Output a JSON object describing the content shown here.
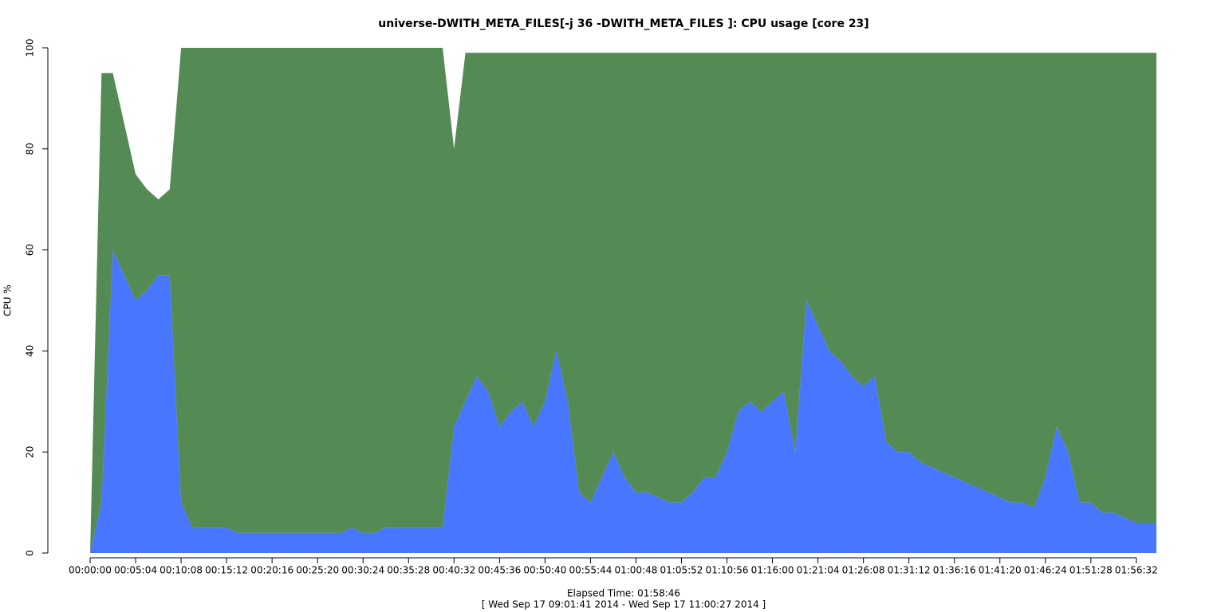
{
  "chart_data": {
    "type": "area",
    "title": "universe-DWITH_META_FILES[-j 36 -DWITH_META_FILES ]: CPU usage [core 23]",
    "xlabel": "Elapsed Time: 01:58:46",
    "subtitle": "[ Wed Sep 17 09:01:41 2014 - Wed Sep 17 11:00:27 2014 ]",
    "ylabel": "CPU %",
    "stacked": true,
    "x": [
      0,
      76,
      152,
      228,
      304,
      380,
      456,
      532,
      608,
      684,
      760,
      836,
      912,
      988,
      1064,
      1140,
      1216,
      1292,
      1368,
      1444,
      1520,
      1596,
      1672,
      1748,
      1824,
      1900,
      1976,
      2052,
      2128,
      2204,
      2280,
      2356,
      2432,
      2508,
      2584,
      2660,
      2736,
      2812,
      2888,
      2964,
      3040,
      3116,
      3192,
      3268,
      3344,
      3420,
      3496,
      3572,
      3648,
      3724,
      3800,
      3876,
      3952,
      4028,
      4104,
      4180,
      4256,
      4332,
      4408,
      4484,
      4560,
      4636,
      4712,
      4788,
      4864,
      4940,
      5016,
      5092,
      5168,
      5244,
      5320,
      5396,
      5472,
      5548,
      5624,
      5700,
      5776,
      5852,
      5928,
      6004,
      6080,
      6156,
      6232,
      6308,
      6384,
      6460,
      6536,
      6612,
      6688,
      6764,
      6840,
      6916,
      6992,
      7068,
      7126
    ],
    "series": [
      {
        "color": "#4876ff",
        "values": [
          0,
          10,
          60,
          55,
          50,
          52,
          55,
          55,
          10,
          5,
          5,
          5,
          5,
          4,
          4,
          4,
          4,
          4,
          4,
          4,
          4,
          4,
          4,
          5,
          4,
          4,
          5,
          5,
          5,
          5,
          5,
          5,
          25,
          30,
          35,
          32,
          25,
          28,
          30,
          25,
          30,
          40,
          30,
          12,
          10,
          15,
          20,
          15,
          12,
          12,
          11,
          10,
          10,
          12,
          15,
          15,
          20,
          28,
          30,
          28,
          30,
          32,
          20,
          50,
          45,
          40,
          38,
          35,
          33,
          35,
          22,
          20,
          20,
          18,
          17,
          16,
          15,
          14,
          13,
          12,
          11,
          10,
          10,
          9,
          15,
          25,
          20,
          10,
          10,
          8,
          8,
          7,
          6,
          6,
          6
        ]
      },
      {
        "color": "#548b54",
        "values": [
          0,
          85,
          35,
          30,
          25,
          20,
          15,
          17,
          90,
          95,
          95,
          95,
          95,
          96,
          96,
          96,
          96,
          96,
          96,
          96,
          96,
          96,
          96,
          95,
          96,
          96,
          95,
          95,
          95,
          95,
          95,
          95,
          55,
          69,
          64,
          67,
          74,
          71,
          69,
          74,
          69,
          59,
          69,
          87,
          89,
          84,
          79,
          84,
          87,
          87,
          88,
          89,
          89,
          87,
          84,
          84,
          79,
          71,
          69,
          71,
          69,
          67,
          79,
          49,
          54,
          59,
          61,
          64,
          66,
          64,
          77,
          79,
          79,
          81,
          82,
          83,
          84,
          85,
          86,
          87,
          88,
          89,
          89,
          90,
          84,
          74,
          79,
          89,
          89,
          91,
          91,
          92,
          93,
          93,
          93
        ]
      }
    ],
    "xlim": [
      0,
      7126
    ],
    "xticks": [
      {
        "value": 0,
        "label": "00:00:00"
      },
      {
        "value": 304,
        "label": "00:05:04"
      },
      {
        "value": 608,
        "label": "00:10:08"
      },
      {
        "value": 912,
        "label": "00:15:12"
      },
      {
        "value": 1216,
        "label": "00:20:16"
      },
      {
        "value": 1520,
        "label": "00:25:20"
      },
      {
        "value": 1824,
        "label": "00:30:24"
      },
      {
        "value": 2128,
        "label": "00:35:28"
      },
      {
        "value": 2432,
        "label": "00:40:32"
      },
      {
        "value": 2736,
        "label": "00:45:36"
      },
      {
        "value": 3040,
        "label": "00:50:40"
      },
      {
        "value": 3344,
        "label": "00:55:44"
      },
      {
        "value": 3648,
        "label": "01:00:48"
      },
      {
        "value": 3952,
        "label": "01:05:52"
      },
      {
        "value": 4256,
        "label": "01:10:56"
      },
      {
        "value": 4560,
        "label": "01:16:00"
      },
      {
        "value": 4864,
        "label": "01:21:04"
      },
      {
        "value": 5168,
        "label": "01:26:08"
      },
      {
        "value": 5472,
        "label": "01:31:12"
      },
      {
        "value": 5776,
        "label": "01:36:16"
      },
      {
        "value": 6080,
        "label": "01:41:20"
      },
      {
        "value": 6384,
        "label": "01:46:24"
      },
      {
        "value": 6688,
        "label": "01:51:28"
      },
      {
        "value": 6992,
        "label": "01:56:32"
      }
    ],
    "ylim": [
      0,
      100
    ],
    "yticks": [
      0,
      20,
      40,
      60,
      80,
      100
    ]
  }
}
